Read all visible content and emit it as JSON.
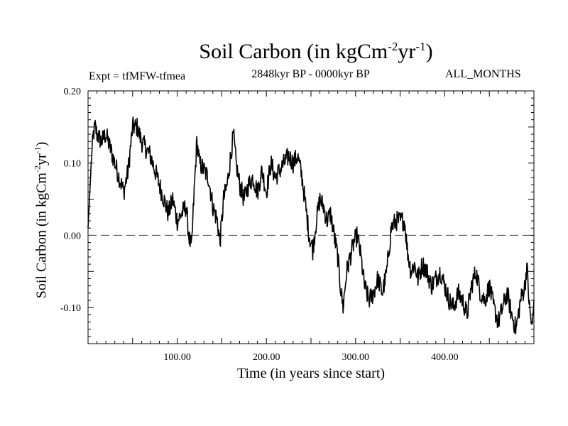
{
  "chart_data": {
    "type": "line",
    "title": "Soil Carbon (in kgCm",
    "title_sup1": "-2",
    "title_mid": "yr",
    "title_sup2": "-1",
    "title_end": ")",
    "subtitle_left": "Expt = tfMFW-tfmea",
    "subtitle_center": "2848kyr BP - 0000kyr BP",
    "subtitle_right": "ALL_MONTHS",
    "xlabel": "Time (in years since start)",
    "ylabel": "Soil Carbon (in kgCm",
    "ylabel_sup1": "-2",
    "ylabel_mid": "yr",
    "ylabel_sup2": "-1",
    "ylabel_end": ")",
    "xlim": [
      0,
      500
    ],
    "ylim": [
      -0.15,
      0.2
    ],
    "x_ticks": [
      100,
      200,
      300,
      400
    ],
    "x_tick_labels": [
      "100.00",
      "200.00",
      "300.00",
      "400.00"
    ],
    "y_ticks": [
      -0.1,
      0.0,
      0.1,
      0.2
    ],
    "y_tick_labels": [
      "-0.10",
      "0.00",
      "0.10",
      "0.20"
    ],
    "reference_line": 0.0,
    "series": [
      {
        "name": "Soil Carbon",
        "color": "#000000",
        "x": [
          0,
          2,
          4,
          6,
          8,
          10,
          15,
          20,
          25,
          30,
          35,
          40,
          45,
          50,
          55,
          60,
          65,
          70,
          75,
          80,
          85,
          90,
          95,
          100,
          105,
          110,
          113,
          116,
          119,
          122,
          125,
          130,
          135,
          140,
          145,
          148,
          152,
          156,
          160,
          163,
          166,
          170,
          175,
          180,
          185,
          190,
          195,
          200,
          205,
          210,
          215,
          220,
          225,
          230,
          235,
          240,
          245,
          248,
          252,
          256,
          260,
          264,
          268,
          272,
          276,
          280,
          283,
          286,
          290,
          294,
          298,
          302,
          306,
          310,
          315,
          320,
          325,
          330,
          335,
          340,
          345,
          350,
          355,
          358,
          362,
          366,
          370,
          375,
          380,
          385,
          390,
          395,
          400,
          405,
          410,
          415,
          420,
          425,
          430,
          435,
          440,
          445,
          450,
          455,
          460,
          465,
          470,
          475,
          480,
          485,
          490,
          492,
          495,
          498,
          500
        ],
        "y": [
          0.01,
          0.06,
          0.11,
          0.14,
          0.15,
          0.14,
          0.13,
          0.14,
          0.12,
          0.1,
          0.08,
          0.06,
          0.09,
          0.15,
          0.15,
          0.13,
          0.12,
          0.11,
          0.09,
          0.07,
          0.05,
          0.03,
          0.05,
          0.02,
          0.03,
          0.04,
          0.0,
          -0.02,
          0.06,
          0.13,
          0.1,
          0.09,
          0.08,
          0.04,
          0.02,
          -0.01,
          0.05,
          0.07,
          0.11,
          0.14,
          0.1,
          0.07,
          0.05,
          0.07,
          0.08,
          0.06,
          0.09,
          0.06,
          0.1,
          0.08,
          0.09,
          0.1,
          0.11,
          0.1,
          0.11,
          0.08,
          0.03,
          0.0,
          -0.02,
          0.02,
          0.05,
          0.04,
          0.02,
          0.03,
          0.0,
          -0.03,
          -0.07,
          -0.1,
          -0.05,
          -0.03,
          -0.01,
          0.0,
          -0.03,
          -0.07,
          -0.09,
          -0.08,
          -0.06,
          -0.08,
          -0.05,
          0.01,
          0.02,
          0.02,
          0.02,
          -0.02,
          -0.05,
          -0.04,
          -0.06,
          -0.04,
          -0.05,
          -0.07,
          -0.06,
          -0.05,
          -0.07,
          -0.09,
          -0.1,
          -0.08,
          -0.09,
          -0.11,
          -0.07,
          -0.05,
          -0.08,
          -0.09,
          -0.07,
          -0.1,
          -0.12,
          -0.1,
          -0.08,
          -0.11,
          -0.13,
          -0.09,
          -0.07,
          -0.04,
          -0.1,
          -0.13,
          -0.09
        ]
      }
    ]
  }
}
